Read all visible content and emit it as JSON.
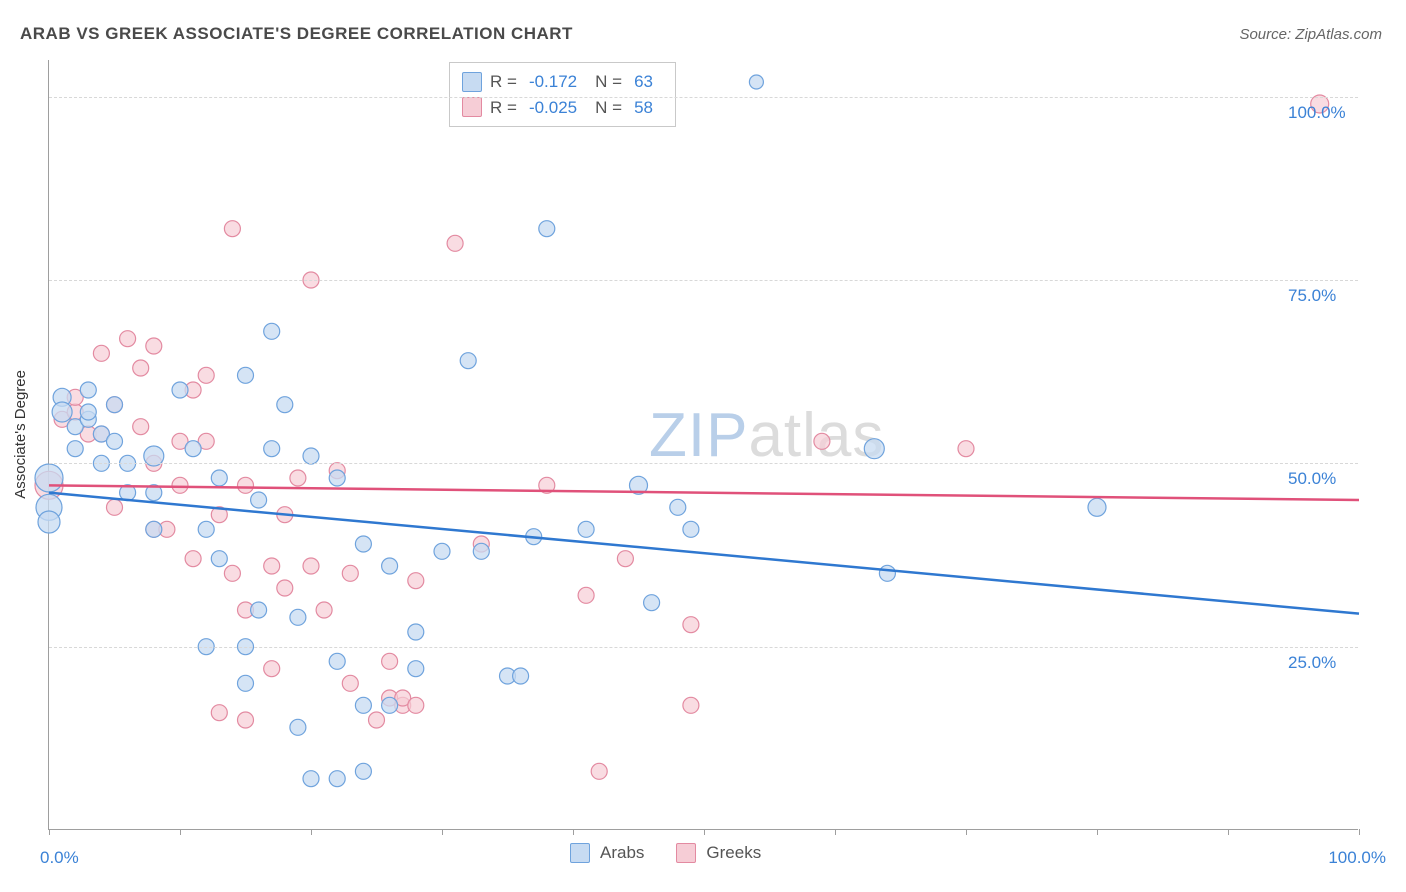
{
  "title": "ARAB VS GREEK ASSOCIATE'S DEGREE CORRELATION CHART",
  "source_label": "Source: ZipAtlas.com",
  "y_axis_label": "Associate's Degree",
  "chart": {
    "type": "scatter",
    "xlim": [
      0,
      100
    ],
    "ylim": [
      0,
      105
    ],
    "x_tick_positions": [
      0,
      10,
      20,
      30,
      40,
      50,
      60,
      70,
      80,
      90,
      100
    ],
    "x_tick_labels_shown": {
      "0": "0.0%",
      "100": "100.0%"
    },
    "y_grid_positions": [
      25,
      50,
      75,
      100
    ],
    "y_tick_labels": {
      "25": "25.0%",
      "50": "50.0%",
      "75": "75.0%",
      "100": "100.0%"
    },
    "background_color": "#ffffff",
    "grid_color": "#d8d8d8",
    "axis_color": "#9e9e9e",
    "watermark": {
      "zip": "ZIP",
      "atlas": "atlas",
      "zip_color": "#b9cfe9",
      "atlas_color": "#dcdcdc",
      "fontsize": 62
    },
    "series": [
      {
        "name": "Arabs",
        "label": "Arabs",
        "marker_fill": "#c7dbf2",
        "marker_stroke": "#6fa3dd",
        "marker_fill_opacity": 0.75,
        "default_radius": 8,
        "trend": {
          "y_at_x0": 46,
          "y_at_x100": 29.5,
          "color": "#2f78d0",
          "width": 2.5
        },
        "legend_stats": {
          "R": "-0.172",
          "N": "63"
        },
        "points": [
          {
            "x": 1,
            "y": 59,
            "r": 9
          },
          {
            "x": 1,
            "y": 57,
            "r": 10
          },
          {
            "x": 0,
            "y": 48,
            "r": 14
          },
          {
            "x": 0,
            "y": 44,
            "r": 13
          },
          {
            "x": 0,
            "y": 42,
            "r": 11
          },
          {
            "x": 2,
            "y": 52
          },
          {
            "x": 2,
            "y": 55
          },
          {
            "x": 3,
            "y": 56
          },
          {
            "x": 3,
            "y": 57
          },
          {
            "x": 3,
            "y": 60
          },
          {
            "x": 4,
            "y": 54
          },
          {
            "x": 4,
            "y": 50
          },
          {
            "x": 5,
            "y": 58
          },
          {
            "x": 5,
            "y": 53
          },
          {
            "x": 6,
            "y": 50
          },
          {
            "x": 6,
            "y": 46
          },
          {
            "x": 8,
            "y": 51,
            "r": 10
          },
          {
            "x": 8,
            "y": 46
          },
          {
            "x": 8,
            "y": 41
          },
          {
            "x": 10,
            "y": 60
          },
          {
            "x": 11,
            "y": 52
          },
          {
            "x": 12,
            "y": 41
          },
          {
            "x": 12,
            "y": 25
          },
          {
            "x": 13,
            "y": 48
          },
          {
            "x": 13,
            "y": 37
          },
          {
            "x": 15,
            "y": 62
          },
          {
            "x": 15,
            "y": 25
          },
          {
            "x": 15,
            "y": 20
          },
          {
            "x": 16,
            "y": 45
          },
          {
            "x": 16,
            "y": 30
          },
          {
            "x": 17,
            "y": 52
          },
          {
            "x": 17,
            "y": 68
          },
          {
            "x": 18,
            "y": 58
          },
          {
            "x": 19,
            "y": 29
          },
          {
            "x": 19,
            "y": 14
          },
          {
            "x": 20,
            "y": 51
          },
          {
            "x": 20,
            "y": 7
          },
          {
            "x": 22,
            "y": 48
          },
          {
            "x": 22,
            "y": 23
          },
          {
            "x": 22,
            "y": 7
          },
          {
            "x": 24,
            "y": 39
          },
          {
            "x": 24,
            "y": 17
          },
          {
            "x": 24,
            "y": 8
          },
          {
            "x": 26,
            "y": 36
          },
          {
            "x": 26,
            "y": 17
          },
          {
            "x": 28,
            "y": 22
          },
          {
            "x": 28,
            "y": 27
          },
          {
            "x": 30,
            "y": 38
          },
          {
            "x": 32,
            "y": 64
          },
          {
            "x": 33,
            "y": 38
          },
          {
            "x": 35,
            "y": 21
          },
          {
            "x": 36,
            "y": 21
          },
          {
            "x": 37,
            "y": 40
          },
          {
            "x": 38,
            "y": 82
          },
          {
            "x": 41,
            "y": 41
          },
          {
            "x": 45,
            "y": 47,
            "r": 9
          },
          {
            "x": 46,
            "y": 31
          },
          {
            "x": 48,
            "y": 44
          },
          {
            "x": 49,
            "y": 41
          },
          {
            "x": 63,
            "y": 52,
            "r": 10
          },
          {
            "x": 64,
            "y": 35
          },
          {
            "x": 80,
            "y": 44,
            "r": 9
          },
          {
            "x": 54,
            "y": 102,
            "r": 7
          }
        ]
      },
      {
        "name": "Greeks",
        "label": "Greeks",
        "marker_fill": "#f6cdd6",
        "marker_stroke": "#e38aa1",
        "marker_fill_opacity": 0.7,
        "default_radius": 8,
        "trend": {
          "y_at_x0": 47,
          "y_at_x100": 45,
          "color": "#e0517a",
          "width": 2.5
        },
        "legend_stats": {
          "R": "-0.025",
          "N": "58"
        },
        "points": [
          {
            "x": 0,
            "y": 47,
            "r": 14
          },
          {
            "x": 1,
            "y": 56
          },
          {
            "x": 2,
            "y": 57
          },
          {
            "x": 2,
            "y": 59
          },
          {
            "x": 3,
            "y": 54
          },
          {
            "x": 4,
            "y": 65
          },
          {
            "x": 4,
            "y": 54
          },
          {
            "x": 5,
            "y": 58
          },
          {
            "x": 5,
            "y": 44
          },
          {
            "x": 6,
            "y": 67
          },
          {
            "x": 7,
            "y": 63
          },
          {
            "x": 7,
            "y": 55
          },
          {
            "x": 8,
            "y": 66
          },
          {
            "x": 8,
            "y": 50
          },
          {
            "x": 8,
            "y": 41
          },
          {
            "x": 9,
            "y": 41
          },
          {
            "x": 10,
            "y": 53
          },
          {
            "x": 10,
            "y": 47
          },
          {
            "x": 11,
            "y": 60
          },
          {
            "x": 11,
            "y": 37
          },
          {
            "x": 12,
            "y": 53
          },
          {
            "x": 12,
            "y": 62
          },
          {
            "x": 13,
            "y": 43
          },
          {
            "x": 13,
            "y": 16
          },
          {
            "x": 14,
            "y": 82
          },
          {
            "x": 14,
            "y": 35
          },
          {
            "x": 15,
            "y": 47
          },
          {
            "x": 15,
            "y": 30
          },
          {
            "x": 15,
            "y": 15
          },
          {
            "x": 17,
            "y": 36
          },
          {
            "x": 17,
            "y": 22
          },
          {
            "x": 18,
            "y": 43
          },
          {
            "x": 18,
            "y": 33
          },
          {
            "x": 19,
            "y": 48
          },
          {
            "x": 20,
            "y": 75
          },
          {
            "x": 20,
            "y": 36
          },
          {
            "x": 21,
            "y": 30
          },
          {
            "x": 22,
            "y": 49
          },
          {
            "x": 23,
            "y": 35
          },
          {
            "x": 23,
            "y": 20
          },
          {
            "x": 25,
            "y": 15
          },
          {
            "x": 26,
            "y": 18
          },
          {
            "x": 26,
            "y": 23
          },
          {
            "x": 27,
            "y": 17
          },
          {
            "x": 27,
            "y": 18
          },
          {
            "x": 28,
            "y": 34
          },
          {
            "x": 28,
            "y": 17
          },
          {
            "x": 31,
            "y": 80
          },
          {
            "x": 33,
            "y": 39
          },
          {
            "x": 38,
            "y": 47
          },
          {
            "x": 41,
            "y": 32
          },
          {
            "x": 42,
            "y": 8
          },
          {
            "x": 44,
            "y": 37
          },
          {
            "x": 49,
            "y": 28
          },
          {
            "x": 49,
            "y": 17
          },
          {
            "x": 59,
            "y": 53
          },
          {
            "x": 70,
            "y": 52
          },
          {
            "x": 97,
            "y": 99,
            "r": 9
          }
        ]
      }
    ]
  },
  "legend_top": {
    "rows": [
      {
        "swatch_fill": "#c7dbf2",
        "swatch_stroke": "#6fa3dd",
        "R_label": "R =",
        "R": "-0.172",
        "N_label": "N =",
        "N": "63"
      },
      {
        "swatch_fill": "#f6cdd6",
        "swatch_stroke": "#e38aa1",
        "R_label": "R =",
        "R": "-0.025",
        "N_label": "N =",
        "N": "58"
      }
    ]
  },
  "legend_bottom": {
    "items": [
      {
        "swatch_fill": "#c7dbf2",
        "swatch_stroke": "#6fa3dd",
        "label": "Arabs"
      },
      {
        "swatch_fill": "#f6cdd6",
        "swatch_stroke": "#e38aa1",
        "label": "Greeks"
      }
    ]
  },
  "colors": {
    "tick_label": "#3b82d6",
    "text": "#4a4a4a"
  }
}
